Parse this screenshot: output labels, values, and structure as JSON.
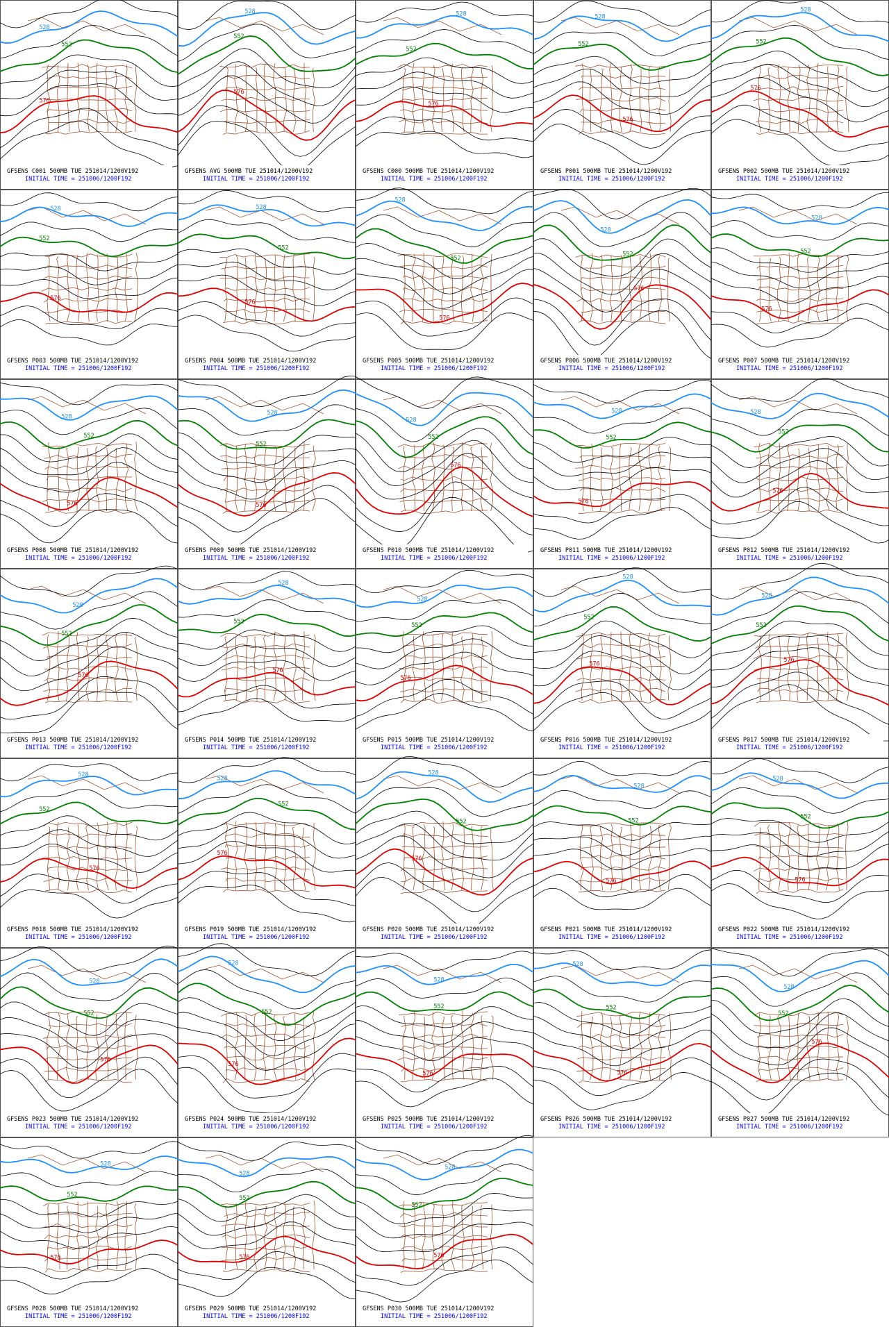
{
  "panels": [
    {
      "title": "GFSENS C001 500MB TUE 251014/1200V192",
      "initial_time": "INITIAL TIME = 251006/1200F192",
      "contour_labels": [
        "528",
        "552",
        "576"
      ]
    },
    {
      "title": "GFSENS AVG 500MB TUE 251014/1200V192",
      "initial_time": "INITIAL TIME = 251006/1200F192",
      "contour_labels": [
        "528",
        "552",
        "576"
      ]
    },
    {
      "title": "GFSENS C000 500MB TUE 251014/1200V192",
      "initial_time": "INITIAL TIME = 251006/1200F192",
      "contour_labels": [
        "528",
        "552",
        "576"
      ]
    },
    {
      "title": "GFSENS P001 500MB TUE 251014/1200V192",
      "initial_time": "INITIAL TIME = 251006/1200F192",
      "contour_labels": [
        "528",
        "552",
        "576"
      ]
    },
    {
      "title": "GFSENS P002 500MB TUE 251014/1200V192",
      "initial_time": "INITIAL TIME = 251006/1200F192",
      "contour_labels": [
        "528",
        "552",
        "576"
      ]
    },
    {
      "title": "GFSENS P003 500MB TUE 251014/1200V192",
      "initial_time": "INITIAL TIME = 251006/1200F192",
      "contour_labels": [
        "528",
        "552",
        "576"
      ]
    },
    {
      "title": "GFSENS P004 500MB TUE 251014/1200V192",
      "initial_time": "INITIAL TIME = 251006/1200F192",
      "contour_labels": [
        "528",
        "552",
        "576"
      ]
    },
    {
      "title": "GFSENS P005 500MB TUE 251014/1200V192",
      "initial_time": "INITIAL TIME = 251006/1200F192",
      "contour_labels": [
        "528",
        "552",
        "576"
      ]
    },
    {
      "title": "GFSENS P006 500MB TUE 251014/1200V192",
      "initial_time": "INITIAL TIME = 251006/1200F192",
      "contour_labels": [
        "528",
        "552",
        "576"
      ]
    },
    {
      "title": "GFSENS P007 500MB TUE 251014/1200V192",
      "initial_time": "INITIAL TIME = 251006/1200F192",
      "contour_labels": [
        "528",
        "552",
        "576"
      ]
    },
    {
      "title": "GFSENS P008 500MB TUE 251014/1200V192",
      "initial_time": "INITIAL TIME = 251006/1200F192",
      "contour_labels": [
        "528",
        "552",
        "576"
      ]
    },
    {
      "title": "GFSENS P009 500MB TUE 251014/1200V192",
      "initial_time": "INITIAL TIME = 251006/1200F192",
      "contour_labels": [
        "528",
        "552",
        "576"
      ]
    },
    {
      "title": "GFSENS P010 500MB TUE 251014/1200V192",
      "initial_time": "INITIAL TIME = 251006/1200F192",
      "contour_labels": [
        "528",
        "552",
        "576"
      ]
    },
    {
      "title": "GFSENS P011 500MB TUE 251014/1200V192",
      "initial_time": "INITIAL TIME = 251006/1200F192",
      "contour_labels": [
        "528",
        "552",
        "576"
      ]
    },
    {
      "title": "GFSENS P012 500MB TUE 251014/1200V192",
      "initial_time": "INITIAL TIME = 251006/1200F192",
      "contour_labels": [
        "528",
        "552",
        "576"
      ]
    },
    {
      "title": "GFSENS P013 500MB TUE 251014/1200V192",
      "initial_time": "INITIAL TIME = 251006/1200F192",
      "contour_labels": [
        "528",
        "552",
        "576"
      ]
    },
    {
      "title": "GFSENS P014 500MB TUE 251014/1200V192",
      "initial_time": "INITIAL TIME = 251006/1200F192",
      "contour_labels": [
        "528",
        "552",
        "576"
      ]
    },
    {
      "title": "GFSENS P015 500MB TUE 251014/1200V192",
      "initial_time": "INITIAL TIME = 251006/1200F192",
      "contour_labels": [
        "528",
        "552",
        "576"
      ]
    },
    {
      "title": "GFSENS P016 500MB TUE 251014/1200V192",
      "initial_time": "INITIAL TIME = 251006/1200F192",
      "contour_labels": [
        "528",
        "552",
        "576"
      ]
    },
    {
      "title": "GFSENS P017 500MB TUE 251014/1200V192",
      "initial_time": "INITIAL TIME = 251006/1200F192",
      "contour_labels": [
        "528",
        "552",
        "576"
      ]
    },
    {
      "title": "GFSENS P018 500MB TUE 251014/1200V192",
      "initial_time": "INITIAL TIME = 251006/1200F192",
      "contour_labels": [
        "528",
        "552",
        "576"
      ]
    },
    {
      "title": "GFSENS P019 500MB TUE 251014/1200V192",
      "initial_time": "INITIAL TIME = 251006/1200F192",
      "contour_labels": [
        "528",
        "552",
        "576"
      ]
    },
    {
      "title": "GFSENS P020 500MB TUE 251014/1200V192",
      "initial_time": "INITIAL TIME = 251006/1200F192",
      "contour_labels": [
        "528",
        "552",
        "576"
      ]
    },
    {
      "title": "GFSENS P021 500MB TUE 251014/1200V192",
      "initial_time": "INITIAL TIME = 251006/1200F192",
      "contour_labels": [
        "528",
        "552",
        "576"
      ]
    },
    {
      "title": "GFSENS P022 500MB TUE 251014/1200V192",
      "initial_time": "INITIAL TIME = 251006/1200F192",
      "contour_labels": [
        "528",
        "552",
        "576"
      ]
    },
    {
      "title": "GFSENS P023 500MB TUE 251014/1200V192",
      "initial_time": "INITIAL TIME = 251006/1200F192",
      "contour_labels": [
        "528",
        "552",
        "576"
      ]
    },
    {
      "title": "GFSENS P024 500MB TUE 251014/1200V192",
      "initial_time": "INITIAL TIME = 251006/1200F192",
      "contour_labels": [
        "528",
        "552",
        "576"
      ]
    },
    {
      "title": "GFSENS P025 500MB TUE 251014/1200V192",
      "initial_time": "INITIAL TIME = 251006/1200F192",
      "contour_labels": [
        "528",
        "552",
        "576"
      ]
    },
    {
      "title": "GFSENS P026 500MB TUE 251014/1200V192",
      "initial_time": "INITIAL TIME = 251006/1200F192",
      "contour_labels": [
        "528",
        "552",
        "576"
      ]
    },
    {
      "title": "GFSENS P027 500MB TUE 251014/1200V192",
      "initial_time": "INITIAL TIME = 251006/1200F192",
      "contour_labels": [
        "528",
        "552",
        "576"
      ]
    },
    {
      "title": "GFSENS P028 500MB TUE 251014/1200V192",
      "initial_time": "INITIAL TIME = 251006/1200F192",
      "contour_labels": [
        "528",
        "552",
        "576"
      ]
    },
    {
      "title": "GFSENS P029 500MB TUE 251014/1200V192",
      "initial_time": "INITIAL TIME = 251006/1200F192",
      "contour_labels": [
        "528",
        "552",
        "576"
      ]
    },
    {
      "title": "GFSENS P030 500MB TUE 251014/1200V192",
      "initial_time": "INITIAL TIME = 251006/1200F192",
      "contour_labels": [
        "528",
        "552",
        "576"
      ]
    }
  ]
}
